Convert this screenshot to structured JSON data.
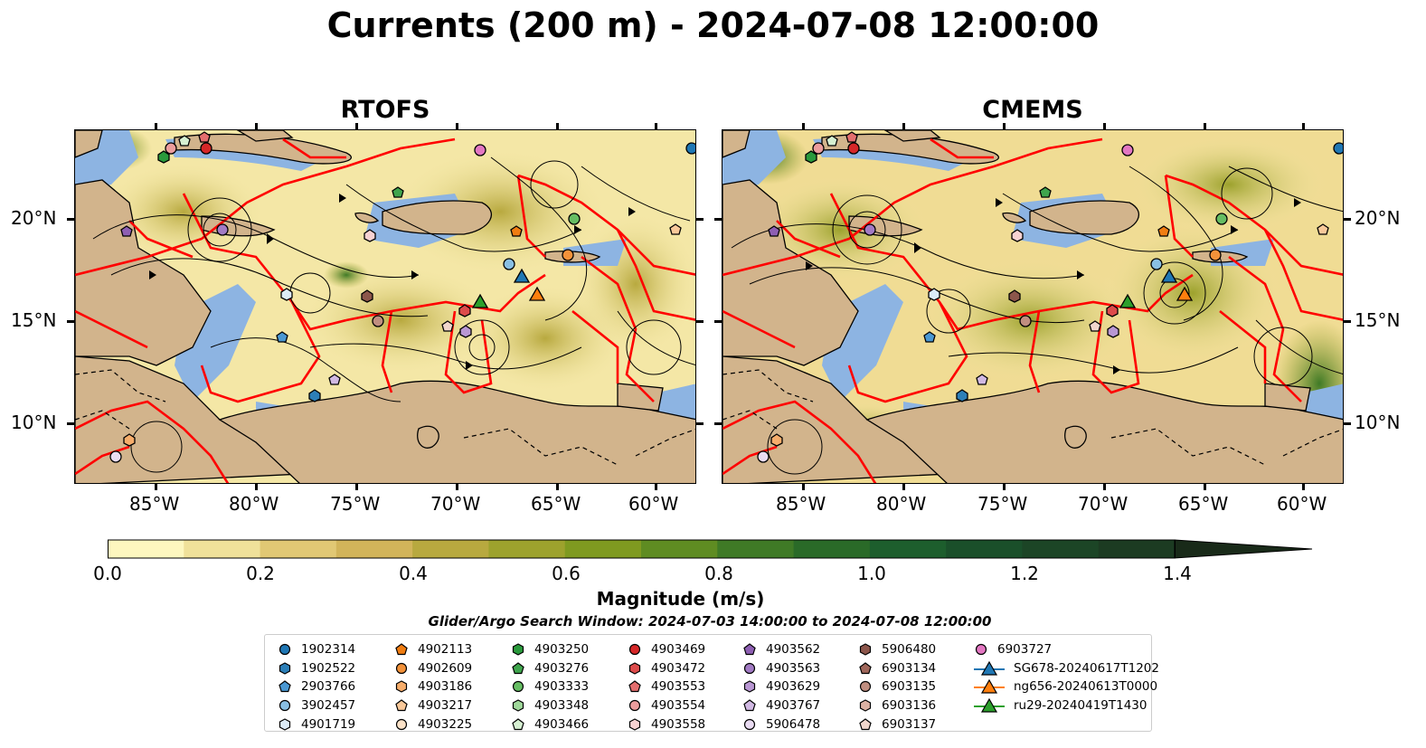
{
  "figure": {
    "title": "Currents (200 m) - 2024-07-08 12:00:00",
    "panels": [
      {
        "id": "rtofs",
        "title": "RTOFS"
      },
      {
        "id": "cmems",
        "title": "CMEMS"
      }
    ],
    "lon_ticks": [
      "85°W",
      "80°W",
      "75°W",
      "70°W",
      "65°W",
      "60°W"
    ],
    "lat_ticks": [
      "20°N",
      "15°N",
      "10°N"
    ]
  },
  "colorbar": {
    "label": "Magnitude (m/s)",
    "ticks": [
      "0.0",
      "0.2",
      "0.4",
      "0.6",
      "0.8",
      "1.0",
      "1.2",
      "1.4"
    ],
    "colors": [
      "#fdf7bf",
      "#f0e19a",
      "#e1c874",
      "#d2b45a",
      "#b8a93f",
      "#9da22d",
      "#7f9a20",
      "#5f8c22",
      "#3f7a26",
      "#2a6a28",
      "#1d5e2d",
      "#1a4f2a",
      "#1c4526",
      "#1c3b22",
      "#1b321d",
      "#192a19"
    ]
  },
  "search_window": "Glider/Argo Search Window: 2024-07-03 14:00:00 to 2024-07-08 12:00:00",
  "legend": {
    "columns": [
      [
        {
          "label": "1902314",
          "marker": "circle",
          "color": "#1f77b4"
        },
        {
          "label": "1902522",
          "marker": "hexagon",
          "color": "#2c7fb8"
        },
        {
          "label": "2903766",
          "marker": "pentagon",
          "color": "#4a98d3"
        },
        {
          "label": "3902457",
          "marker": "circle",
          "color": "#89bfe3"
        },
        {
          "label": "4901719",
          "marker": "hexagon",
          "color": "#dcebf7"
        }
      ],
      [
        {
          "label": "4902113",
          "marker": "pentagon",
          "color": "#f07d12"
        },
        {
          "label": "4902609",
          "marker": "circle",
          "color": "#f3923a"
        },
        {
          "label": "4903186",
          "marker": "hexagon",
          "color": "#f6ad6b"
        },
        {
          "label": "4903217",
          "marker": "pentagon",
          "color": "#f9c99a"
        },
        {
          "label": "4903225",
          "marker": "circle",
          "color": "#fde3c9"
        }
      ],
      [
        {
          "label": "4903250",
          "marker": "hexagon",
          "color": "#2a9a3c"
        },
        {
          "label": "4903276",
          "marker": "pentagon",
          "color": "#3fa54d"
        },
        {
          "label": "4903333",
          "marker": "circle",
          "color": "#66bd63"
        },
        {
          "label": "4903348",
          "marker": "hexagon",
          "color": "#9fd89a"
        },
        {
          "label": "4903466",
          "marker": "pentagon",
          "color": "#d6f0d2"
        }
      ],
      [
        {
          "label": "4903469",
          "marker": "circle",
          "color": "#d62728"
        },
        {
          "label": "4903472",
          "marker": "hexagon",
          "color": "#dd4b4b"
        },
        {
          "label": "4903553",
          "marker": "pentagon",
          "color": "#e36e6e"
        },
        {
          "label": "4903554",
          "marker": "circle",
          "color": "#ec9d9d"
        },
        {
          "label": "4903558",
          "marker": "hexagon",
          "color": "#f7d2d2"
        }
      ],
      [
        {
          "label": "4903562",
          "marker": "pentagon",
          "color": "#8e5fb3"
        },
        {
          "label": "4903563",
          "marker": "circle",
          "color": "#a27bc4"
        },
        {
          "label": "4903629",
          "marker": "hexagon",
          "color": "#b997d3"
        },
        {
          "label": "4903767",
          "marker": "pentagon",
          "color": "#d1b9e3"
        },
        {
          "label": "5906478",
          "marker": "circle",
          "color": "#eadcf3"
        }
      ],
      [
        {
          "label": "5906480",
          "marker": "hexagon",
          "color": "#8c564b"
        },
        {
          "label": "6903134",
          "marker": "pentagon",
          "color": "#a0675b"
        },
        {
          "label": "6903135",
          "marker": "circle",
          "color": "#c08e80"
        },
        {
          "label": "6903136",
          "marker": "hexagon",
          "color": "#dcb2a4"
        },
        {
          "label": "6903137",
          "marker": "pentagon",
          "color": "#f1d6cc"
        }
      ],
      [
        {
          "label": "6903727",
          "marker": "circle",
          "color": "#e377c2"
        },
        {
          "label": "SG678-20240617T1202",
          "marker": "triangle-line",
          "color": "#1f77b4"
        },
        {
          "label": "ng656-20240613T0000",
          "marker": "triangle-line",
          "color": "#ff7f0e"
        },
        {
          "label": "ru29-20240419T1430",
          "marker": "triangle-line",
          "color": "#2ca02c"
        }
      ]
    ]
  },
  "map_colors": {
    "land": "#d2b48c",
    "shallow": "#8db4e2",
    "ocean_low": "#f4e7a6",
    "ocean_mid": "#d8c16b",
    "ocean_high": "#7f9a20",
    "ocean_peak": "#2f7a2c",
    "eez": "#ff0000",
    "streamline": "#000000"
  }
}
